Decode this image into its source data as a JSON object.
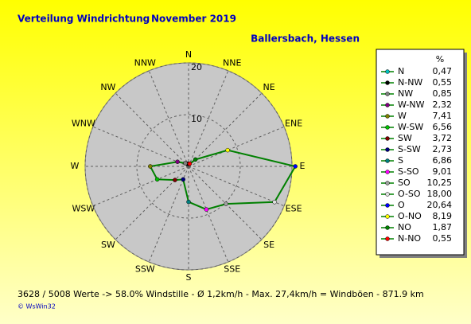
{
  "chart_data": {
    "type": "radar",
    "title": "Verteilung Windrichtung",
    "period": "November 2019",
    "location": "Ballersbach, Hessen",
    "directions": [
      "N",
      "NNE",
      "NE",
      "ENE",
      "E",
      "ESE",
      "SE",
      "SSE",
      "S",
      "SSW",
      "SW",
      "WSW",
      "W",
      "WNW",
      "NW",
      "NNW"
    ],
    "legend_unit": "%",
    "names": [
      "N",
      "N-NW",
      "NW",
      "W-NW",
      "W",
      "W-SW",
      "SW",
      "S-SW",
      "S",
      "S-SO",
      "SO",
      "O-SO",
      "O",
      "O-NO",
      "NO",
      "N-NO"
    ],
    "values": [
      0.47,
      0.55,
      0.85,
      2.32,
      7.41,
      6.56,
      3.72,
      2.73,
      6.86,
      9.01,
      10.25,
      18.0,
      20.64,
      8.19,
      1.87,
      0.55
    ],
    "value_labels": [
      "0,47",
      "0,55",
      "0,85",
      "2,32",
      "7,41",
      "6,56",
      "3,72",
      "2,73",
      "6,86",
      "9,01",
      "10,25",
      "18,00",
      "20,64",
      "8,19",
      "1,87",
      "0,55"
    ],
    "marker_colors": [
      "#00c0c0",
      "#000000",
      "#808080",
      "#800080",
      "#808000",
      "#00c000",
      "#800000",
      "#000080",
      "#008080",
      "#ff00ff",
      "#a0a0a0",
      "#e0e0e0",
      "#0000ff",
      "#ffff00",
      "#008000",
      "#ff0000"
    ],
    "line_color": "#008000",
    "rlim": [
      0,
      20
    ],
    "rticks": [
      10,
      20
    ],
    "grid": true,
    "footer": "3628 / 5008 Werte  -> 58.0% Windstille   -   Ø 1,2km/h  -  Max. 27,4km/h = Windböen   -   871.9 km",
    "copyright": "© WsWin32"
  }
}
